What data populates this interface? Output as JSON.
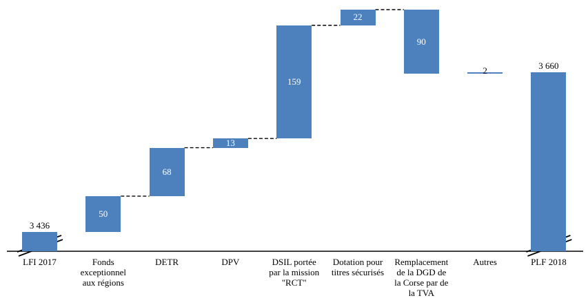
{
  "page": {
    "background_color": "#ffffff",
    "text_color": "#000000"
  },
  "chart_data": {
    "type": "bar",
    "subtype": "waterfall",
    "title": "",
    "legend": "none",
    "grid": "off",
    "value_axis_visible": false,
    "bar_color": "#4C81BD",
    "inside_value_color": "#ffffff",
    "outside_value_color": "#000000",
    "connector_style": "dashed-black",
    "baseline_axis": "solid-black",
    "bars": [
      {
        "label": "LFI 2017",
        "value": 3436,
        "display": "3 436",
        "kind": "total",
        "start": 0,
        "end": 3436,
        "value_label": "above",
        "axis_break": true
      },
      {
        "label": "Fonds\nexceptionnel\naux régions",
        "value": 50,
        "display": "50",
        "kind": "increase",
        "start": 3436,
        "end": 3486,
        "value_label": "inside",
        "axis_break": false
      },
      {
        "label": "DETR",
        "value": 68,
        "display": "68",
        "kind": "increase",
        "start": 3486,
        "end": 3554,
        "value_label": "inside",
        "axis_break": false
      },
      {
        "label": "DPV",
        "value": 13,
        "display": "13",
        "kind": "increase",
        "start": 3554,
        "end": 3567,
        "value_label": "inside",
        "axis_break": false
      },
      {
        "label": "DSIL portée\npar la mission\n\"RCT\"",
        "value": 159,
        "display": "159",
        "kind": "increase",
        "start": 3567,
        "end": 3726,
        "value_label": "inside",
        "axis_break": false
      },
      {
        "label": "Dotation pour\ntitres sécurisés",
        "value": 22,
        "display": "22",
        "kind": "increase",
        "start": 3726,
        "end": 3748,
        "value_label": "inside",
        "axis_break": false
      },
      {
        "label": "Remplacement\nde la DGD de\nla Corse par de\nla TVA",
        "value": -90,
        "display": "90",
        "kind": "decrease",
        "start": 3748,
        "end": 3658,
        "value_label": "inside",
        "axis_break": false
      },
      {
        "label": "Autres",
        "value": 2,
        "display": "2",
        "kind": "increase",
        "start": 3658,
        "end": 3660,
        "value_label": "above",
        "axis_break": false
      },
      {
        "label": "PLF 2018",
        "value": 3660,
        "display": "3 660",
        "kind": "total",
        "start": 0,
        "end": 3660,
        "value_label": "above",
        "axis_break": true
      }
    ],
    "connectors": [
      {
        "from": 1,
        "to": 2,
        "level": 3486
      },
      {
        "from": 2,
        "to": 3,
        "level": 3554
      },
      {
        "from": 3,
        "to": 4,
        "level": 3567
      },
      {
        "from": 4,
        "to": 5,
        "level": 3726
      },
      {
        "from": 5,
        "to": 6,
        "level": 3748
      }
    ]
  }
}
